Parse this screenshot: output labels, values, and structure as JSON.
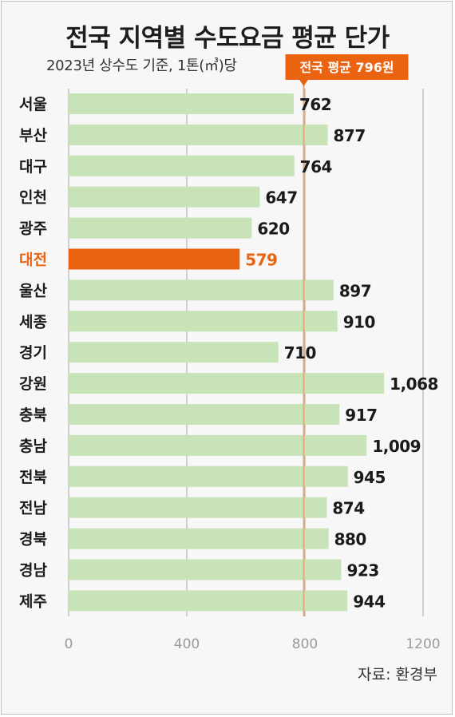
{
  "header": {
    "title": "전국 지역별 수도요금 평균 단가",
    "subtitle": "2023년 상수도 기준, 1톤(㎥)당"
  },
  "footer": {
    "source": "자료: 환경부"
  },
  "colors": {
    "bar": "#c8e3b7",
    "highlight": "#e96310",
    "grid": "#b5b5b5",
    "average_line": "#e5a877",
    "label": "#1a1a1a",
    "tick": "#9a9a9a"
  },
  "chart_data": {
    "type": "bar",
    "orientation": "horizontal",
    "categories": [
      "서울",
      "부산",
      "대구",
      "인천",
      "광주",
      "대전",
      "울산",
      "세종",
      "경기",
      "강원",
      "충북",
      "충남",
      "전북",
      "전남",
      "경북",
      "경남",
      "제주"
    ],
    "values": [
      762,
      877,
      764,
      647,
      620,
      579,
      897,
      910,
      710,
      1068,
      917,
      1009,
      945,
      874,
      880,
      923,
      944
    ],
    "value_labels": [
      "762",
      "877",
      "764",
      "647",
      "620",
      "579",
      "897",
      "910",
      "710",
      "1,068",
      "917",
      "1,009",
      "945",
      "874",
      "880",
      "923",
      "944"
    ],
    "highlight_category": "대전",
    "xlim": [
      0,
      1200
    ],
    "xticks": [
      0,
      400,
      800,
      1200
    ],
    "xtick_labels": [
      "0",
      "400",
      "800",
      "1200"
    ],
    "grid": true,
    "reference_line": {
      "value": 796,
      "label": "전국 평균 796원"
    }
  }
}
